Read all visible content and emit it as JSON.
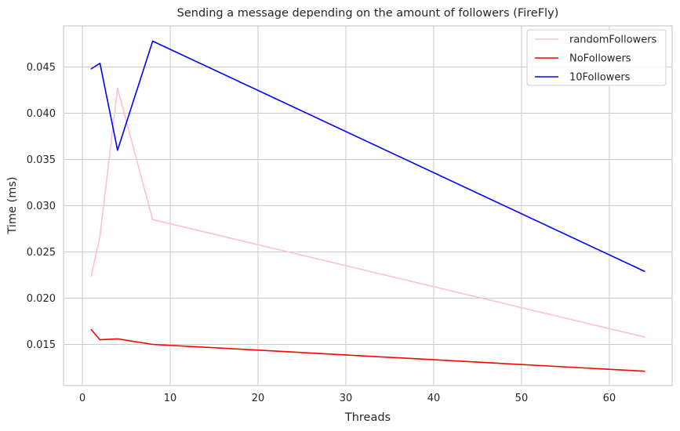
{
  "chart_data": {
    "type": "line",
    "title": "Sending a message depending on the amount of followers (FireFly)",
    "xlabel": "Threads",
    "ylabel": "Time (ms)",
    "xlim": [
      -2.15,
      67.15
    ],
    "ylim": [
      0.01055,
      0.04945
    ],
    "xticks": [
      0,
      10,
      20,
      30,
      40,
      50,
      60
    ],
    "yticks": [
      0.015,
      0.02,
      0.025,
      0.03,
      0.035,
      0.04,
      0.045
    ],
    "ytick_labels": [
      "0.015",
      "0.020",
      "0.025",
      "0.030",
      "0.035",
      "0.040",
      "0.045"
    ],
    "grid": true,
    "legend_position": "top-right",
    "series": [
      {
        "name": "randomFollowers",
        "color": "#ffc0cb",
        "x": [
          1,
          2,
          4,
          8,
          64
        ],
        "y": [
          0.0224,
          0.0267,
          0.0427,
          0.0285,
          0.0158
        ]
      },
      {
        "name": "NoFollowers",
        "color": "#ff0000",
        "x": [
          1,
          2,
          4,
          8,
          64
        ],
        "y": [
          0.0166,
          0.0155,
          0.0156,
          0.015,
          0.0121
        ]
      },
      {
        "name": "10Followers",
        "color": "#0000ff",
        "x": [
          1,
          2,
          4,
          8,
          64
        ],
        "y": [
          0.0448,
          0.0454,
          0.036,
          0.0478,
          0.0229
        ]
      }
    ]
  }
}
